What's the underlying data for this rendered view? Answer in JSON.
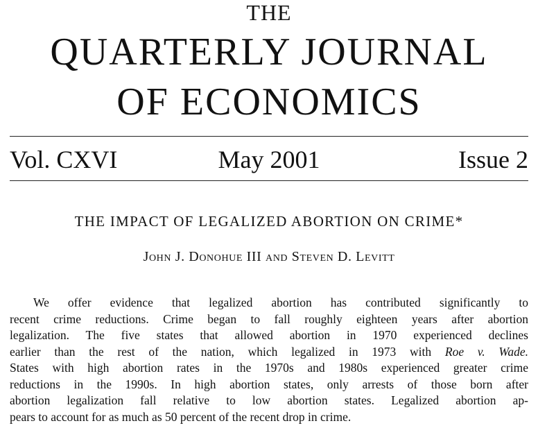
{
  "journal": {
    "masthead_the": "THE",
    "masthead_line1": "QUARTERLY JOURNAL",
    "masthead_line2": "OF ECONOMICS"
  },
  "issue_info": {
    "volume": "Vol. CXVI",
    "date": "May 2001",
    "issue": "Issue 2"
  },
  "article": {
    "title": "THE IMPACT OF LEGALIZED ABORTION ON CRIME*",
    "authors": "John J. Donohue III and Steven D. Levitt",
    "abstract_lines": [
      {
        "text": "We offer evidence that legalized abortion has contributed significantly to"
      },
      {
        "text": "recent crime reductions. Crime began to fall roughly eighteen years after abortion"
      },
      {
        "text": "legalization. The five states that allowed abortion in 1970 experienced declines"
      },
      {
        "text": "earlier than the rest of the nation, which legalized in 1973 with ",
        "italic": "Roe v. Wade."
      },
      {
        "text": "States with high abortion rates in the 1970s and 1980s experienced greater crime"
      },
      {
        "text": "reductions in the 1990s. In high abortion states, only arrests of those born after"
      },
      {
        "text": "abortion legalization fall relative to low abortion states. Legalized abortion ap-"
      },
      {
        "text": "pears to account for as much as 50 percent of the recent drop in crime."
      }
    ]
  }
}
